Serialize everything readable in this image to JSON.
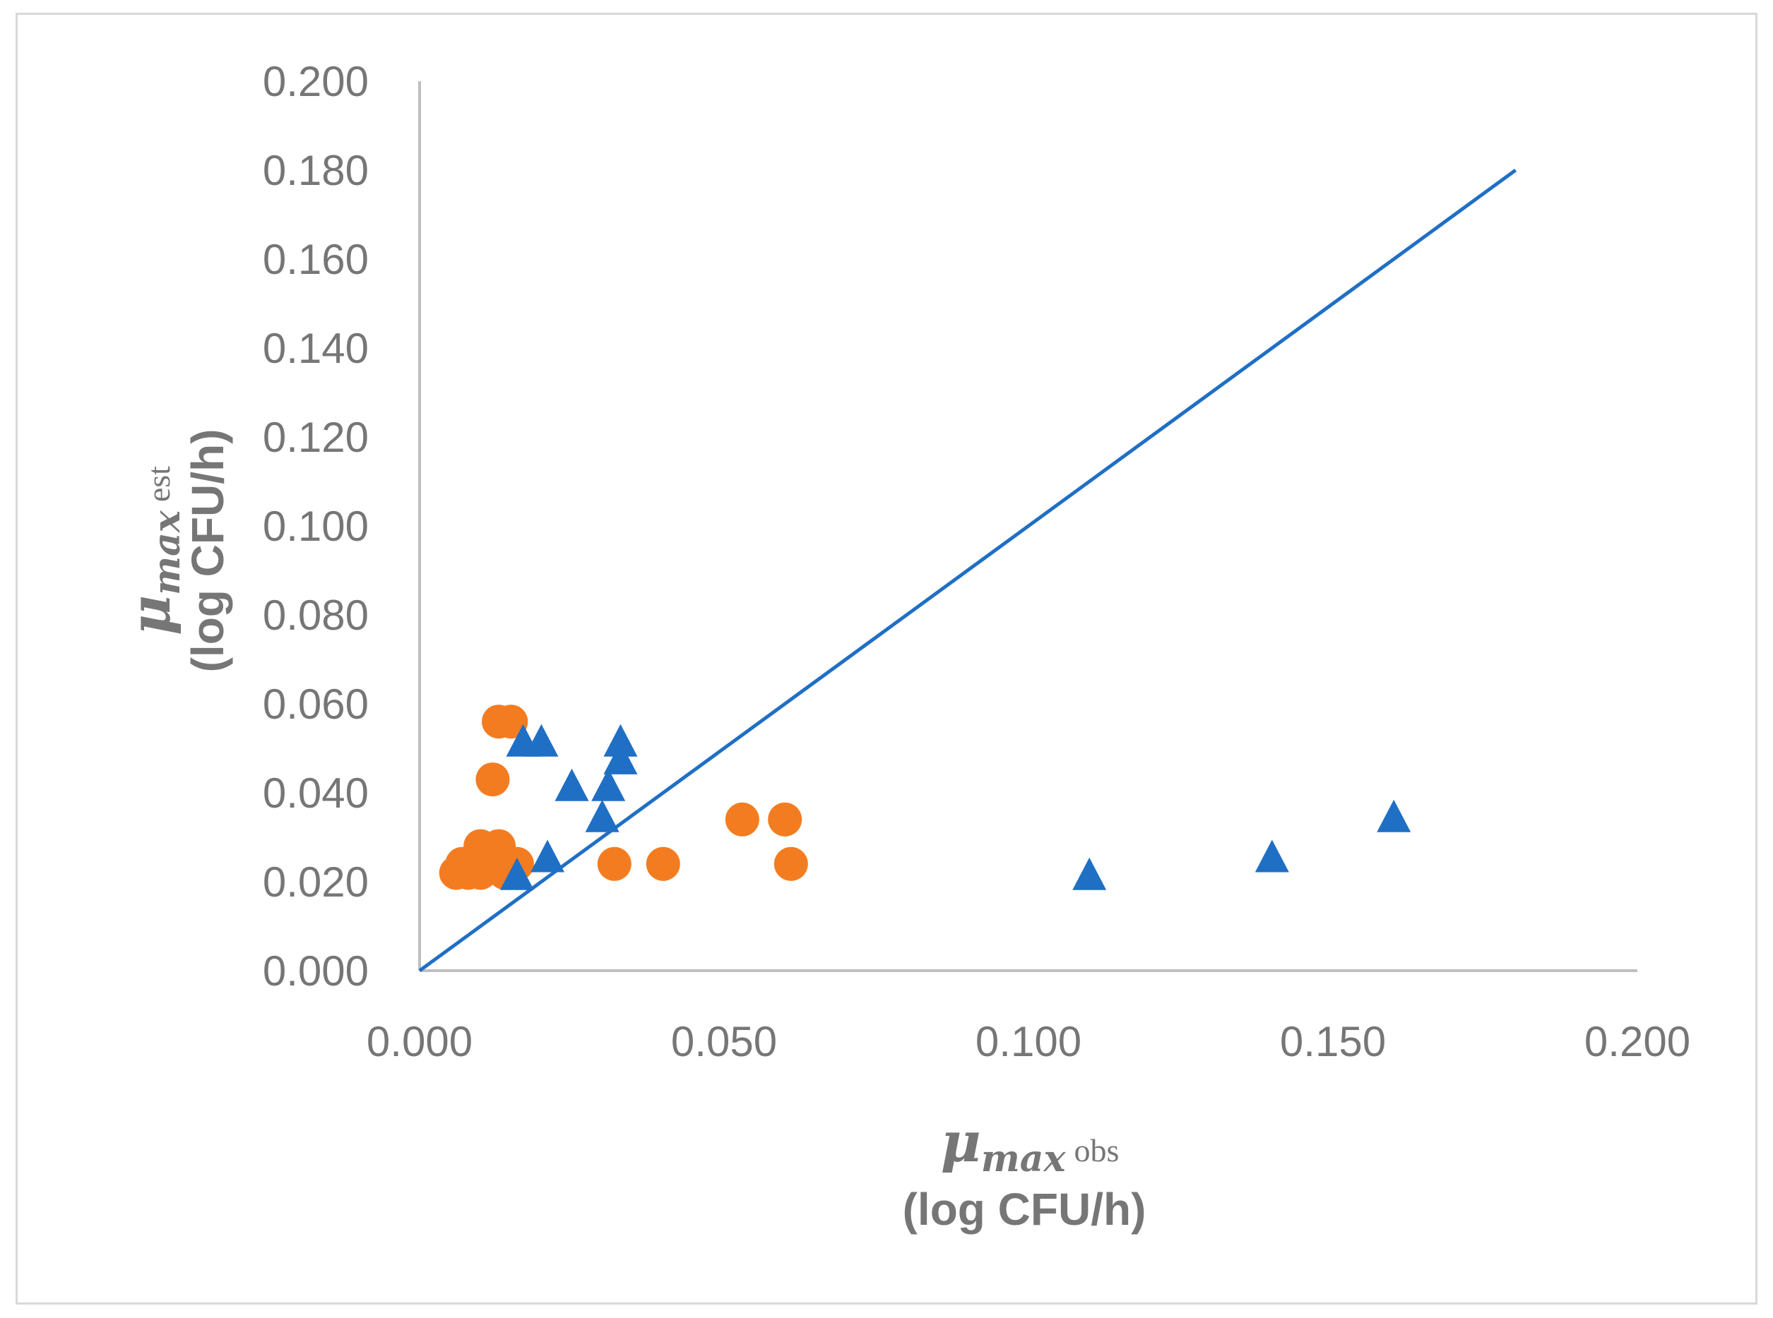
{
  "chart_data": {
    "type": "scatter",
    "xlim": [
      0,
      0.2
    ],
    "ylim": [
      0,
      0.2
    ],
    "x_ticks": [
      "0.000",
      "0.050",
      "0.100",
      "0.150",
      "0.200"
    ],
    "y_ticks": [
      "0.000",
      "0.020",
      "0.040",
      "0.060",
      "0.080",
      "0.100",
      "0.120",
      "0.140",
      "0.160",
      "0.180",
      "0.200"
    ],
    "xlabel": {
      "symbol": "μ",
      "subscript": "max",
      "suffix": "obs",
      "units": "(log CFU/h)"
    },
    "ylabel": {
      "symbol": "μ",
      "subscript": "max",
      "suffix": "est",
      "units": "(log CFU/h)"
    },
    "grid": false,
    "legend": "none",
    "colors": {
      "circles": "#f47c20",
      "triangles": "#1f6fc5",
      "line": "#1f6fc5",
      "axis": "#bfbfbf",
      "text": "#767676"
    },
    "series": [
      {
        "marker": "circle",
        "x": [
          0.006,
          0.007,
          0.008,
          0.009,
          0.01,
          0.01,
          0.011,
          0.011,
          0.012,
          0.012,
          0.013,
          0.013,
          0.014,
          0.015,
          0.016,
          0.012,
          0.013,
          0.015,
          0.032,
          0.04,
          0.053,
          0.06,
          0.061
        ],
        "y": [
          0.022,
          0.024,
          0.022,
          0.024,
          0.028,
          0.022,
          0.024,
          0.026,
          0.043,
          0.024,
          0.028,
          0.056,
          0.022,
          0.056,
          0.024,
          0.026,
          0.024,
          0.022,
          0.024,
          0.024,
          0.034,
          0.034,
          0.024
        ]
      },
      {
        "marker": "triangle",
        "x": [
          0.016,
          0.017,
          0.02,
          0.021,
          0.025,
          0.03,
          0.031,
          0.033,
          0.033,
          0.11,
          0.14,
          0.16
        ],
        "y": [
          0.021,
          0.051,
          0.051,
          0.025,
          0.041,
          0.034,
          0.041,
          0.047,
          0.051,
          0.021,
          0.025,
          0.034
        ]
      },
      {
        "marker": "line",
        "x": [
          0,
          0.18
        ],
        "y": [
          0,
          0.18
        ]
      }
    ]
  }
}
